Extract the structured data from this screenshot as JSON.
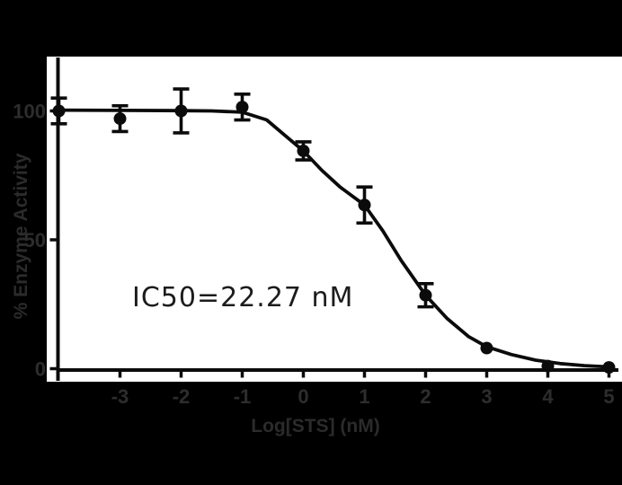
{
  "chart_data": {
    "type": "scatter",
    "title": "",
    "xlabel": "Log[STS] (nM)",
    "ylabel": "% Enzyme Activity",
    "annotation": "IC50=22.27 nM",
    "ic50_nM": 22.27,
    "x_ticks": [
      "-3",
      "-2",
      "-1",
      "0",
      "1",
      "2",
      "3",
      "4",
      "5"
    ],
    "x_tick_values": [
      -3,
      -2,
      -1,
      0,
      1,
      2,
      3,
      4,
      5
    ],
    "y_ticks": [
      "0",
      "50",
      "100"
    ],
    "y_tick_values": [
      0,
      50,
      100
    ],
    "xlim": [
      -4,
      5.2
    ],
    "ylim": [
      0,
      122
    ],
    "grid": false,
    "legend": "none",
    "points": [
      {
        "x": -4,
        "y": 100,
        "err": 5
      },
      {
        "x": -3,
        "y": 97,
        "err": 5
      },
      {
        "x": -2,
        "y": 100,
        "err": 8.5
      },
      {
        "x": -1,
        "y": 101.5,
        "err": 5
      },
      {
        "x": 0,
        "y": 84.5,
        "err": 3.5
      },
      {
        "x": 1,
        "y": 63.5,
        "err": 7
      },
      {
        "x": 2,
        "y": 28.5,
        "err": 4.5
      },
      {
        "x": 3,
        "y": 8,
        "err": 0
      },
      {
        "x": 4,
        "y": 1,
        "err": 0
      },
      {
        "x": 5,
        "y": 0.5,
        "err": 0
      }
    ],
    "fit_curve": {
      "x": [
        -4,
        -3,
        -2,
        -1.5,
        -1,
        -0.6,
        -0.3,
        0,
        0.3,
        0.6,
        1,
        1.3,
        1.6,
        2,
        2.35,
        2.7,
        3,
        3.4,
        3.8,
        4.2,
        4.6,
        5
      ],
      "y": [
        100.3,
        100.2,
        100.1,
        100,
        99.5,
        96.5,
        90.5,
        84.5,
        77,
        70.5,
        63.5,
        53.5,
        42,
        28.5,
        19.5,
        12.5,
        8.5,
        5.5,
        3.3,
        2,
        1.2,
        0.7
      ]
    },
    "colors": {
      "background": "#000000",
      "plot_background": "#ffffff",
      "data": "#0b0b0b",
      "tick_label_text": "#2d2d2d",
      "annotation_text": "#1c1c1c"
    }
  }
}
